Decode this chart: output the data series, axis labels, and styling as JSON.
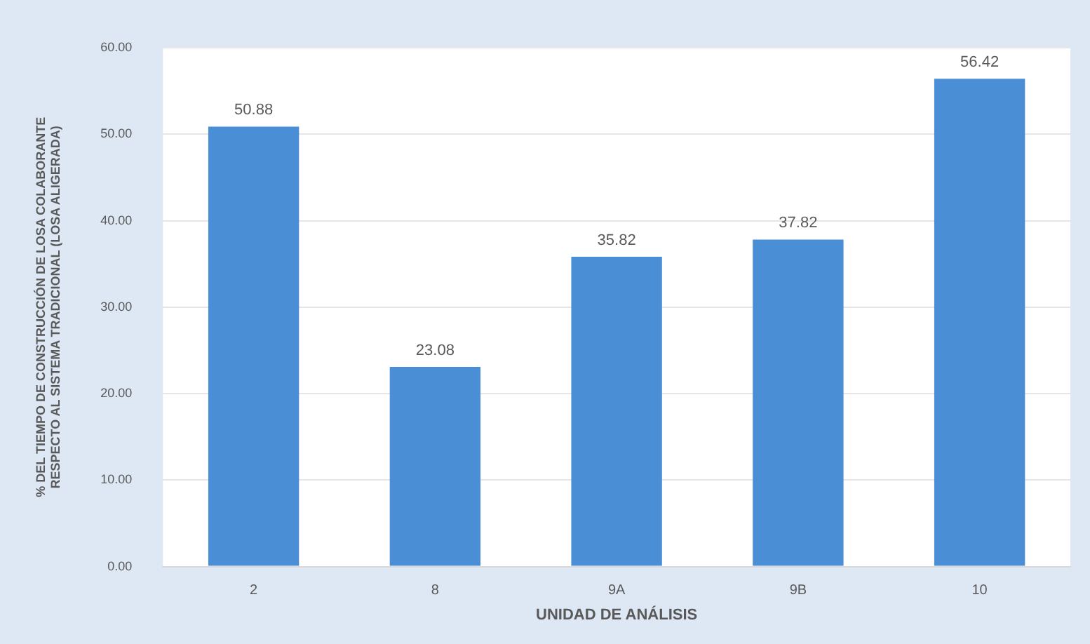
{
  "chart_data": {
    "type": "bar",
    "xlabel": "UNIDAD DE ANÁLISIS",
    "ylabel": "% DEL TIEMPO DE CONSTRUCCIÓN DE LOSA COLABORANTE\nRESPECTO AL SISTEMA TRADICIONAL (LOSA ALIGERADA)",
    "categories": [
      "2",
      "8",
      "9A",
      "9B",
      "10"
    ],
    "values": [
      50.88,
      23.08,
      35.82,
      37.82,
      56.42
    ],
    "color": "#4a8fd6",
    "ylim": [
      0,
      60
    ],
    "yticks": [
      {
        "value": 0,
        "label": "0.00"
      },
      {
        "value": 10,
        "label": "10.00"
      },
      {
        "value": 20,
        "label": "20.00"
      },
      {
        "value": 30,
        "label": "30.00"
      },
      {
        "value": 40,
        "label": "40.00"
      },
      {
        "value": 50,
        "label": "50.00"
      },
      {
        "value": 60,
        "label": "60.00"
      }
    ],
    "grid": "y",
    "data_labels": true,
    "legend": false
  }
}
